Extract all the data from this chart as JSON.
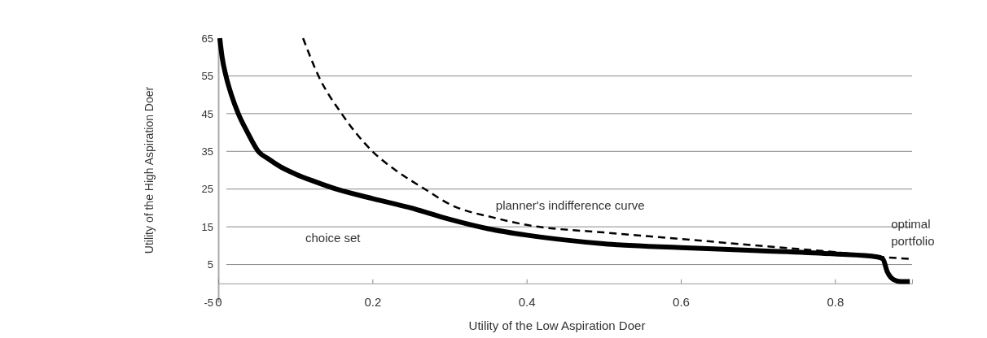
{
  "chart_data": {
    "type": "line",
    "xlabel": "Utility of the Low Aspiration Doer",
    "ylabel": "Utility of the High Aspiration Doer",
    "xlim": [
      0,
      0.9
    ],
    "ylim": [
      -5,
      65
    ],
    "xticks": [
      0,
      0.2,
      0.4,
      0.6,
      0.8
    ],
    "yticks": [
      -5,
      5,
      15,
      25,
      35,
      45,
      55,
      65
    ],
    "grid": "y",
    "marker": "none",
    "annotations": [
      {
        "text": "optimal portfolio",
        "x": 0.86,
        "y": 7
      }
    ],
    "series": [
      {
        "name": "choice set",
        "color": "#000000",
        "line_style": "solid",
        "x": [
          0.002,
          0.005,
          0.01,
          0.017,
          0.026,
          0.038,
          0.052,
          0.065,
          0.08,
          0.1,
          0.125,
          0.153,
          0.2,
          0.25,
          0.3,
          0.35,
          0.4,
          0.45,
          0.5,
          0.6,
          0.7,
          0.8,
          0.855,
          0.862,
          0.868,
          0.876,
          0.885,
          0.897
        ],
        "values": [
          65,
          60,
          55,
          50,
          45,
          40,
          35,
          33,
          31,
          29,
          27,
          25,
          22.5,
          20,
          17,
          14.5,
          12.8,
          11.5,
          10.5,
          9.5,
          8.7,
          7.8,
          7,
          6.5,
          3,
          1,
          0.5,
          0.5
        ]
      },
      {
        "name": "planner's indifference curve",
        "color": "#000000",
        "line_style": "dashed",
        "x": [
          0.11,
          0.13,
          0.16,
          0.2,
          0.23,
          0.268,
          0.3,
          0.36,
          0.4,
          0.5,
          0.6,
          0.7,
          0.8,
          0.86,
          0.9
        ],
        "values": [
          65,
          55,
          45,
          35,
          30,
          25,
          21,
          17.3,
          15.5,
          13.5,
          11.8,
          10,
          8.3,
          7,
          6.5
        ]
      }
    ]
  }
}
